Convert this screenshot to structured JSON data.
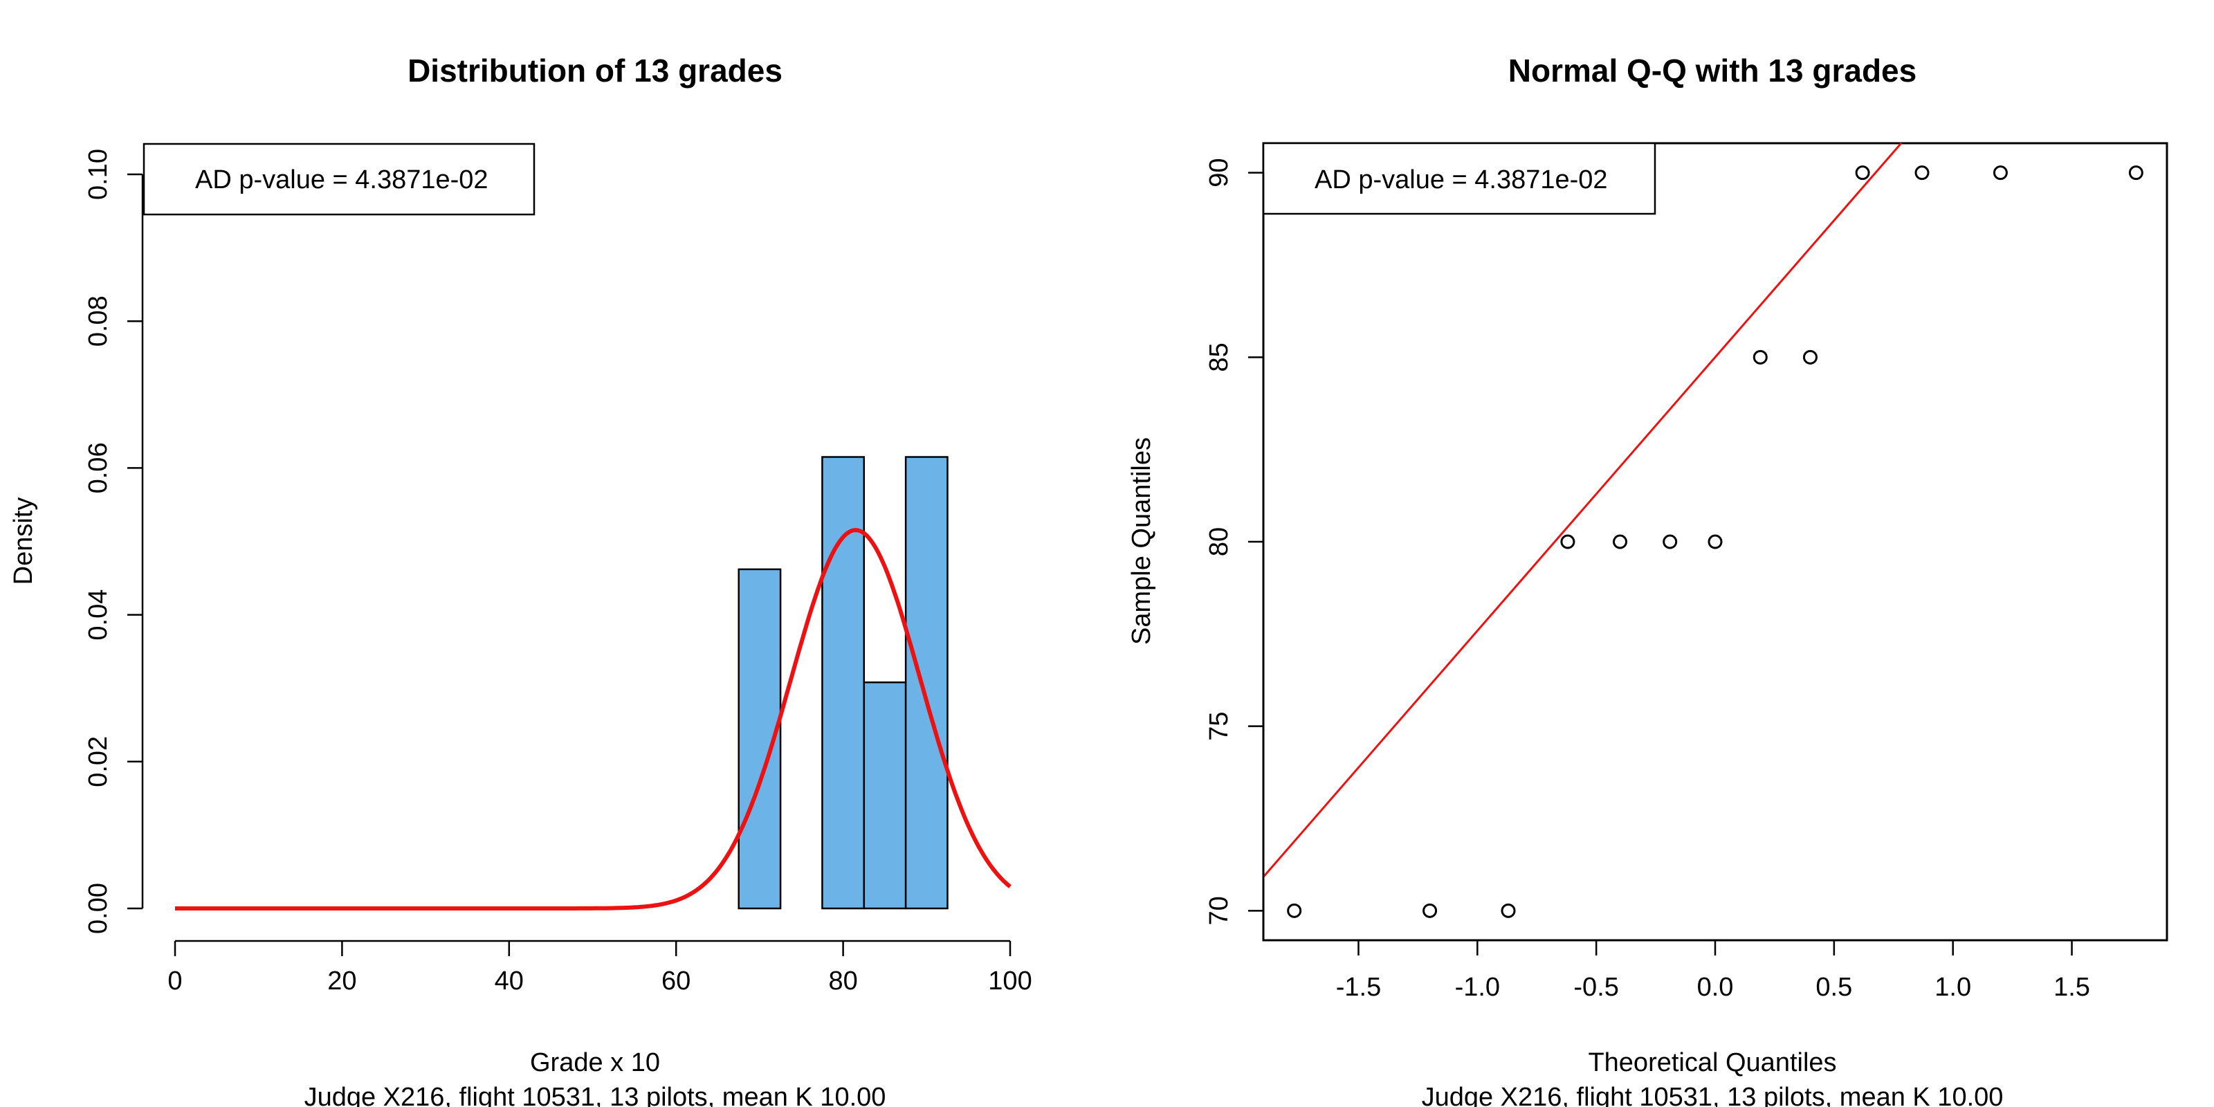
{
  "chart_data": [
    {
      "type": "bar",
      "title": "Distribution of 13 grades",
      "xlabel": "Grade x 10",
      "subtitle": "Judge X216, flight 10531, 13 pilots, mean K 10.00",
      "ylabel": "Density",
      "legend": "AD p-value = 4.3871e-02",
      "legend_position": "top-left",
      "xlim": [
        0,
        100
      ],
      "ylim": [
        0,
        0.1
      ],
      "xticks": [
        0,
        20,
        40,
        60,
        80,
        100
      ],
      "yticks": [
        "0.00",
        "0.02",
        "0.04",
        "0.06",
        "0.08",
        "0.10"
      ],
      "bins": [
        {
          "x0": 67.5,
          "x1": 72.5,
          "density": 0.0462
        },
        {
          "x0": 72.5,
          "x1": 77.5,
          "density": 0.0
        },
        {
          "x0": 77.5,
          "x1": 82.5,
          "density": 0.0615
        },
        {
          "x0": 82.5,
          "x1": 87.5,
          "density": 0.0308
        },
        {
          "x0": 87.5,
          "x1": 92.5,
          "density": 0.0615
        }
      ],
      "bar_color": "#6cb3e8",
      "curve": {
        "type": "normal-density",
        "mean": 81.5,
        "sd": 7.74,
        "color": "#ee1111"
      }
    },
    {
      "type": "scatter",
      "title": "Normal Q-Q with 13 grades",
      "xlabel": "Theoretical Quantiles",
      "subtitle": "Judge X216, flight 10531, 13 pilots, mean K 10.00",
      "ylabel": "Sample Quantiles",
      "legend": "AD p-value = 4.3871e-02",
      "legend_position": "top-left",
      "xlim": [
        -1.9,
        1.9
      ],
      "ylim": [
        69.2,
        90.8
      ],
      "xticks": [
        "-1.5",
        "-1.0",
        "-0.5",
        "0.0",
        "0.5",
        "1.0",
        "1.5"
      ],
      "yticks": [
        "70",
        "75",
        "80",
        "85",
        "90"
      ],
      "points": [
        {
          "x": -1.77,
          "y": 70
        },
        {
          "x": -1.2,
          "y": 70
        },
        {
          "x": -0.87,
          "y": 70
        },
        {
          "x": -0.62,
          "y": 80
        },
        {
          "x": -0.4,
          "y": 80
        },
        {
          "x": -0.19,
          "y": 80
        },
        {
          "x": 0.0,
          "y": 80
        },
        {
          "x": 0.19,
          "y": 85
        },
        {
          "x": 0.4,
          "y": 85
        },
        {
          "x": 0.62,
          "y": 90
        },
        {
          "x": 0.87,
          "y": 90
        },
        {
          "x": 1.2,
          "y": 90
        },
        {
          "x": 1.77,
          "y": 90
        }
      ],
      "qqline": {
        "intercept": 85.0,
        "slope": 7.413,
        "color": "#ee1111"
      }
    }
  ]
}
